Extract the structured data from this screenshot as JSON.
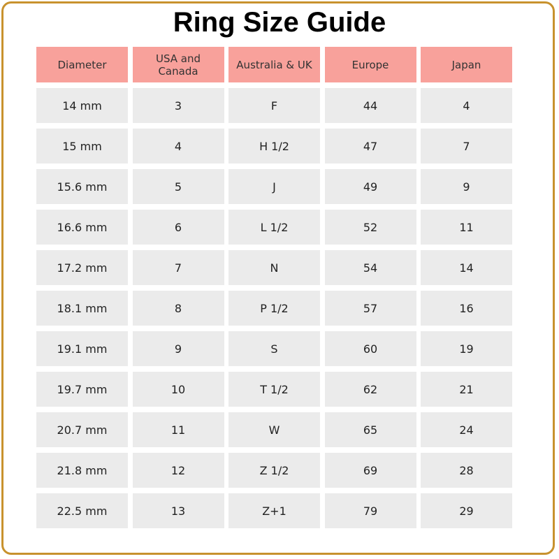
{
  "title": "Ring Size Guide",
  "colors": {
    "header": "#f8a19b",
    "cell": "#ebebeb",
    "border": "#c8922e"
  },
  "table": {
    "headers": [
      "Diameter",
      "USA and Canada",
      "Australia & UK",
      "Europe",
      "Japan"
    ],
    "rows": [
      [
        "14 mm",
        "3",
        "F",
        "44",
        "4"
      ],
      [
        "15 mm",
        "4",
        "H 1/2",
        "47",
        "7"
      ],
      [
        "15.6 mm",
        "5",
        "J",
        "49",
        "9"
      ],
      [
        "16.6 mm",
        "6",
        "L 1/2",
        "52",
        "11"
      ],
      [
        "17.2 mm",
        "7",
        "N",
        "54",
        "14"
      ],
      [
        "18.1 mm",
        "8",
        "P 1/2",
        "57",
        "16"
      ],
      [
        "19.1 mm",
        "9",
        "S",
        "60",
        "19"
      ],
      [
        "19.7 mm",
        "10",
        "T 1/2",
        "62",
        "21"
      ],
      [
        "20.7 mm",
        "11",
        "W",
        "65",
        "24"
      ],
      [
        "21.8 mm",
        "12",
        "Z 1/2",
        "69",
        "28"
      ],
      [
        "22.5 mm",
        "13",
        "Z+1",
        "79",
        "29"
      ]
    ]
  }
}
